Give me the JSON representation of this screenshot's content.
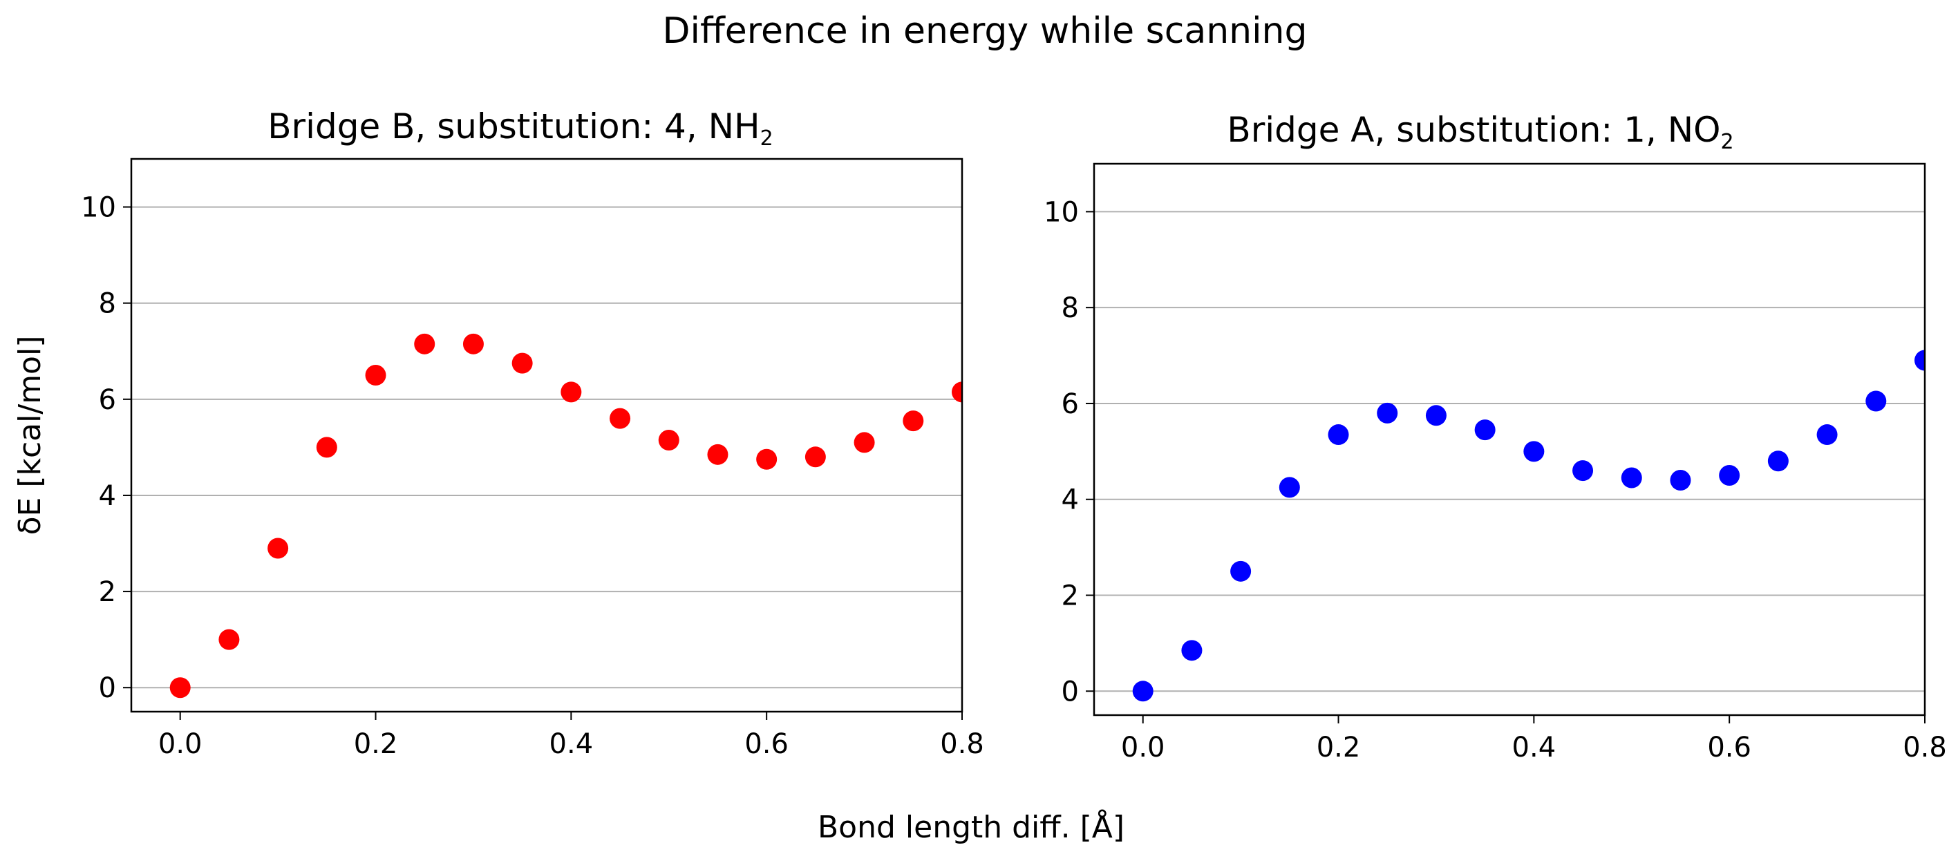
{
  "figure": {
    "suptitle": "Difference in energy while scanning",
    "xlabel": "Bond length diff. [Å]",
    "ylabel": "δE [kcal/mol]"
  },
  "chart_data": [
    {
      "type": "scatter",
      "title": "Bridge B, substitution: 4, NH₂",
      "title_main": "Bridge B, substitution: 4, NH",
      "title_sub": "2",
      "color": "#ff0000",
      "xlim": [
        -0.05,
        0.8
      ],
      "ylim": [
        -0.5,
        11
      ],
      "grid": "y",
      "xticks": [
        0.0,
        0.2,
        0.4,
        0.6,
        0.8
      ],
      "xtick_labels": [
        "0.0",
        "0.2",
        "0.4",
        "0.6",
        "0.8"
      ],
      "yticks": [
        0,
        2,
        4,
        6,
        8,
        10
      ],
      "ytick_labels": [
        "0",
        "2",
        "4",
        "6",
        "8",
        "10"
      ],
      "x": [
        0.0,
        0.05,
        0.1,
        0.15,
        0.2,
        0.25,
        0.3,
        0.35,
        0.4,
        0.45,
        0.5,
        0.55,
        0.6,
        0.65,
        0.7,
        0.75,
        0.8
      ],
      "y": [
        0.0,
        1.0,
        2.9,
        5.0,
        6.5,
        7.15,
        7.15,
        6.75,
        6.15,
        5.6,
        5.15,
        4.85,
        4.75,
        4.8,
        5.1,
        5.55,
        6.15
      ]
    },
    {
      "type": "scatter",
      "title": "Bridge A, substitution: 1, NO₂",
      "title_main": "Bridge A, substitution: 1, NO",
      "title_sub": "2",
      "color": "#0000ff",
      "xlim": [
        -0.05,
        0.8
      ],
      "ylim": [
        -0.5,
        11
      ],
      "grid": "y",
      "xticks": [
        0.0,
        0.2,
        0.4,
        0.6,
        0.8
      ],
      "xtick_labels": [
        "0.0",
        "0.2",
        "0.4",
        "0.6",
        "0.8"
      ],
      "yticks": [
        0,
        2,
        4,
        6,
        8,
        10
      ],
      "ytick_labels": [
        "0",
        "2",
        "4",
        "6",
        "8",
        "10"
      ],
      "x": [
        0.0,
        0.05,
        0.1,
        0.15,
        0.2,
        0.25,
        0.3,
        0.35,
        0.4,
        0.45,
        0.5,
        0.55,
        0.6,
        0.65,
        0.7,
        0.75,
        0.8
      ],
      "y": [
        0.0,
        0.85,
        2.5,
        4.25,
        5.35,
        5.8,
        5.75,
        5.45,
        5.0,
        4.6,
        4.45,
        4.4,
        4.5,
        4.8,
        5.35,
        6.05,
        6.9
      ]
    }
  ]
}
